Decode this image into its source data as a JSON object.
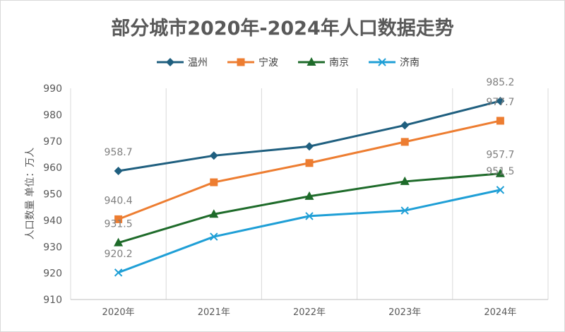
{
  "chart_data": {
    "type": "line",
    "title": "部分城市2020年-2024年人口数据走势",
    "xlabel": "",
    "ylabel": "人口数量 单位：万人",
    "categories": [
      "2020年",
      "2021年",
      "2022年",
      "2023年",
      "2024年"
    ],
    "ylim": [
      910,
      990
    ],
    "yticks": [
      910,
      920,
      930,
      940,
      950,
      960,
      970,
      980,
      990
    ],
    "grid": "vertical",
    "legend_position": "top",
    "series": [
      {
        "name": "温州",
        "values": [
          958.7,
          964.5,
          968.0,
          976.0,
          985.2
        ],
        "color": "#1f5f7f",
        "marker": "diamond",
        "labels": {
          "0": "958.7",
          "4": "985.2"
        }
      },
      {
        "name": "宁波",
        "values": [
          940.4,
          954.4,
          961.7,
          969.7,
          977.7
        ],
        "color": "#ed7d31",
        "marker": "square",
        "labels": {
          "0": "940.4",
          "4": "977.7"
        }
      },
      {
        "name": "南京",
        "values": [
          931.5,
          942.3,
          949.1,
          954.7,
          957.7
        ],
        "color": "#1e6b2a",
        "marker": "triangle",
        "labels": {
          "0": "931.5",
          "4": "957.7"
        }
      },
      {
        "name": "济南",
        "values": [
          920.2,
          933.8,
          941.6,
          943.7,
          951.5
        ],
        "color": "#1f9fd6",
        "marker": "x",
        "labels": {
          "0": "920.2",
          "4": "951.5"
        }
      }
    ]
  }
}
